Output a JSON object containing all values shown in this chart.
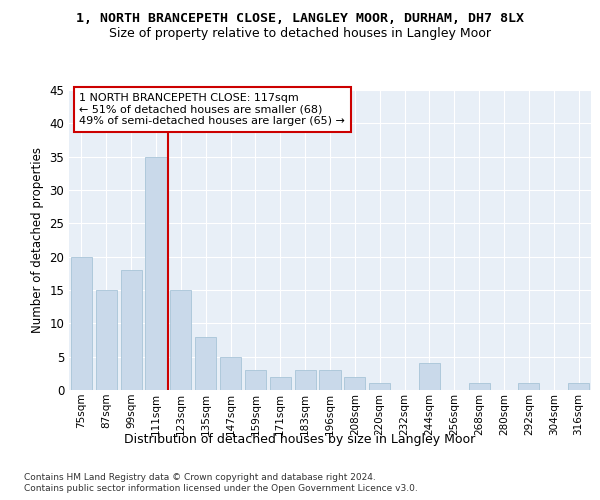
{
  "title1": "1, NORTH BRANCEPETH CLOSE, LANGLEY MOOR, DURHAM, DH7 8LX",
  "title2": "Size of property relative to detached houses in Langley Moor",
  "xlabel": "Distribution of detached houses by size in Langley Moor",
  "ylabel": "Number of detached properties",
  "categories": [
    "75sqm",
    "87sqm",
    "99sqm",
    "111sqm",
    "123sqm",
    "135sqm",
    "147sqm",
    "159sqm",
    "171sqm",
    "183sqm",
    "196sqm",
    "208sqm",
    "220sqm",
    "232sqm",
    "244sqm",
    "256sqm",
    "268sqm",
    "280sqm",
    "292sqm",
    "304sqm",
    "316sqm"
  ],
  "values": [
    20,
    15,
    18,
    35,
    15,
    8,
    5,
    3,
    2,
    3,
    3,
    2,
    1,
    0,
    4,
    0,
    1,
    0,
    1,
    0,
    1
  ],
  "bar_color": "#c9d9ea",
  "bar_edge_color": "#a8c4d8",
  "vline_color": "#cc0000",
  "vline_x": 4,
  "annotation_title": "1 NORTH BRANCEPETH CLOSE: 117sqm",
  "annotation_line1": "← 51% of detached houses are smaller (68)",
  "annotation_line2": "49% of semi-detached houses are larger (65) →",
  "annotation_box_color": "#cc0000",
  "ylim": [
    0,
    45
  ],
  "yticks": [
    0,
    5,
    10,
    15,
    20,
    25,
    30,
    35,
    40,
    45
  ],
  "footer1": "Contains HM Land Registry data © Crown copyright and database right 2024.",
  "footer2": "Contains public sector information licensed under the Open Government Licence v3.0.",
  "fig_bg_color": "#ffffff",
  "plot_bg_color": "#e8eff7",
  "grid_color": "#ffffff"
}
